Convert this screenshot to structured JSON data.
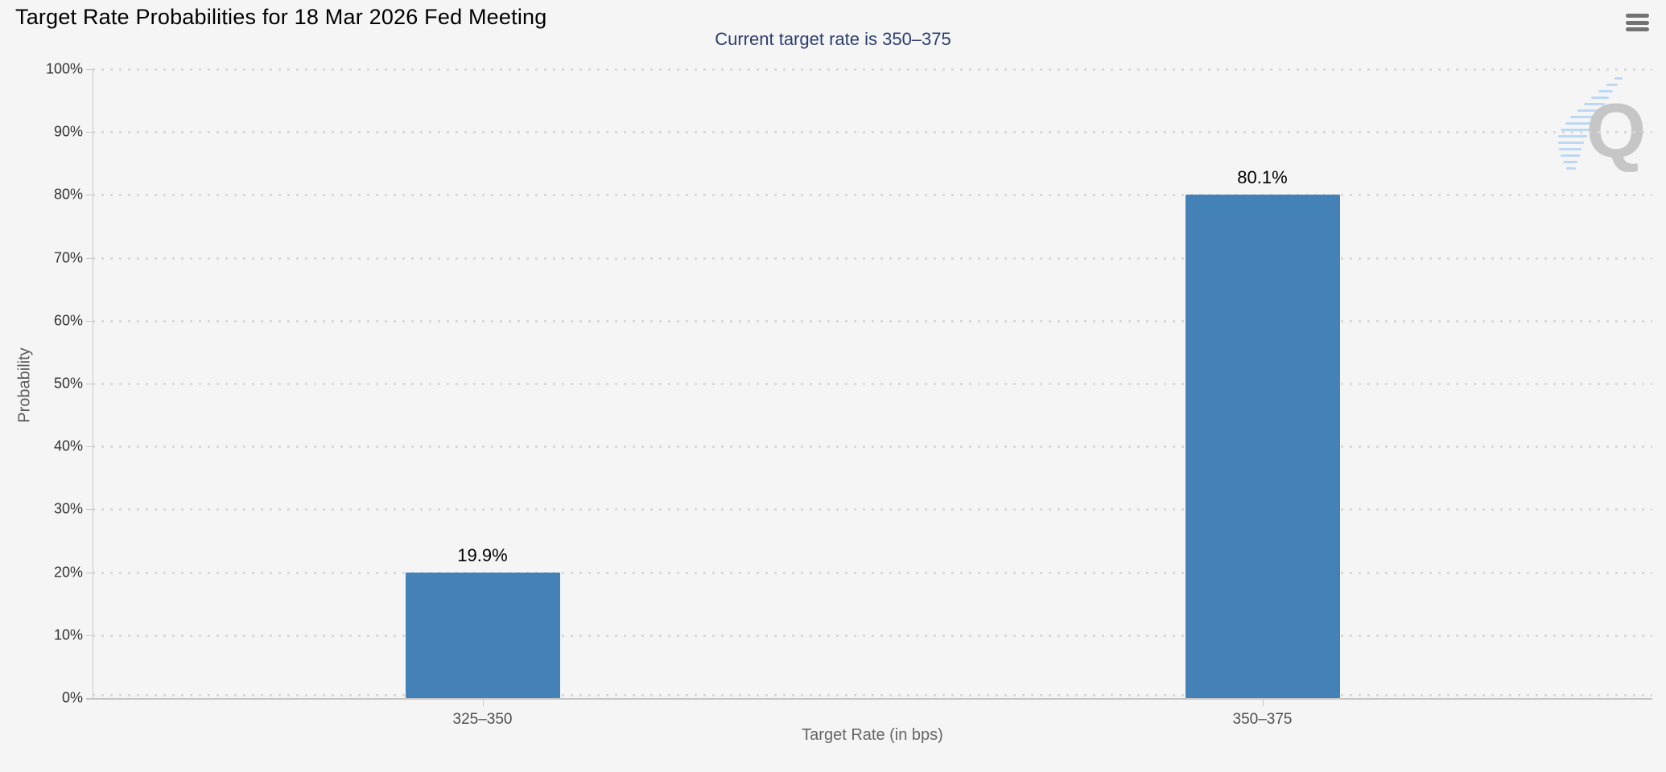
{
  "chart_data": {
    "type": "bar",
    "title": "Target Rate Probabilities for 18 Mar 2026 Fed Meeting",
    "subtitle": "Current target rate is 350–375",
    "categories": [
      "325–350",
      "350–375"
    ],
    "values": [
      19.9,
      80.1
    ],
    "value_labels": [
      "19.9%",
      "80.1%"
    ],
    "xlabel": "Target Rate (in bps)",
    "ylabel": "Probability",
    "ylim": [
      0,
      100
    ],
    "yticks": [
      "0%",
      "10%",
      "20%",
      "30%",
      "40%",
      "50%",
      "60%",
      "70%",
      "80%",
      "90%",
      "100%"
    ],
    "grid": "dotted-horizontal",
    "legend": "none",
    "series_name": "probability"
  },
  "colors": {
    "bar": "#4381b7",
    "subtitle_text": "#2c3e6e",
    "axis": "#c9c9c9",
    "grid_dot": "#d9d9d9",
    "tick_label": "#333333",
    "category_label": "#4f4f4f",
    "axis_title": "#666666",
    "value_label": "#000000",
    "menu_icon": "#737373",
    "watermark_gray": "#c6c6c6",
    "watermark_blue": "#bdd8f4",
    "background": "#f5f5f6"
  },
  "icons": {
    "menu": "hamburger-menu-icon",
    "watermark": "quikstrike-q-watermark-icon"
  },
  "watermark": {
    "letter": "Q"
  }
}
